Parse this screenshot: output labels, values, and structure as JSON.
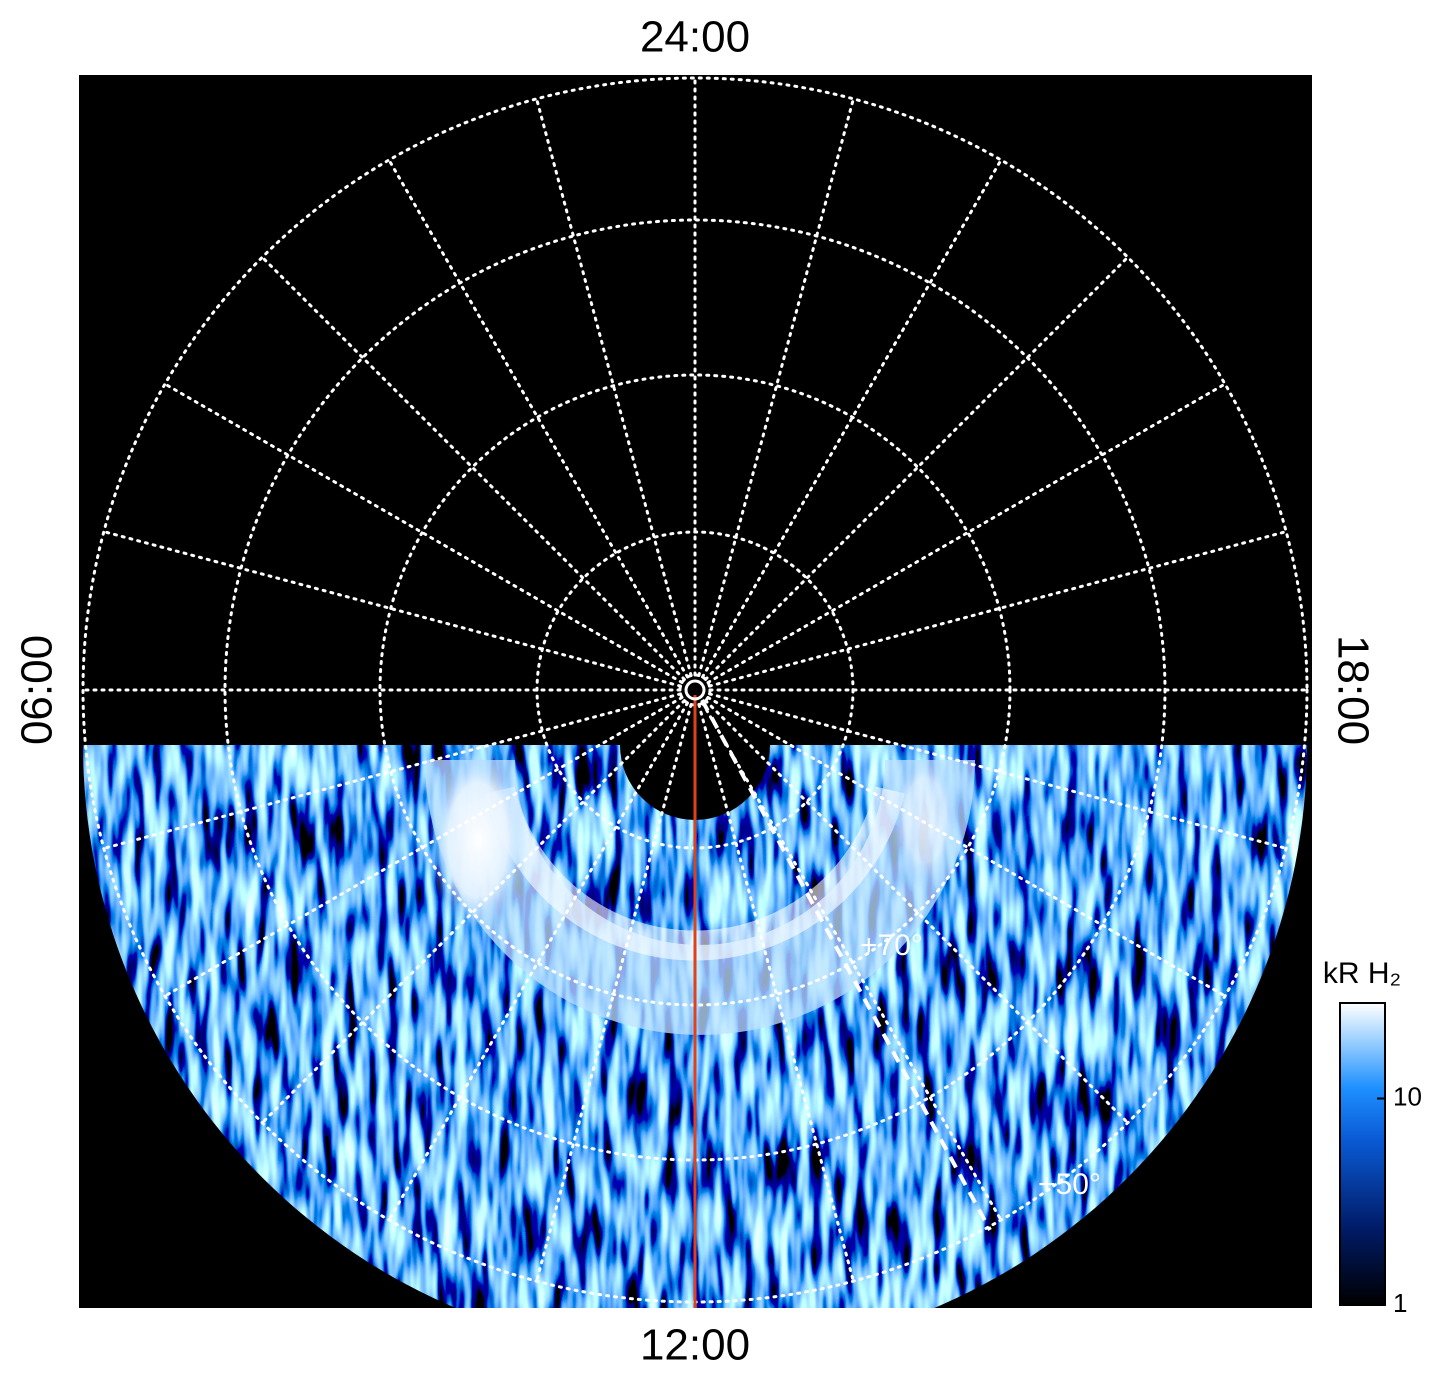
{
  "chart_data": {
    "type": "polar-image",
    "direction_labels": {
      "top": "24:00",
      "left": "06:00",
      "right": "18:00",
      "bottom": "12:00"
    },
    "annotations": [
      "+70°",
      "+50°"
    ],
    "colorbar": {
      "title": "kR H₂",
      "scale": "log",
      "lim": [
        1,
        29
      ],
      "ticks": [
        1,
        10
      ]
    }
  }
}
